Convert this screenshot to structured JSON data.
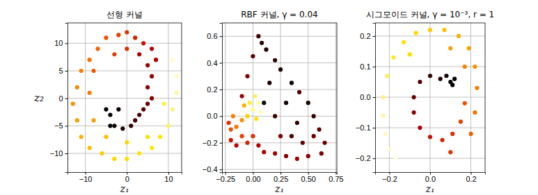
{
  "chart_data": [
    {
      "type": "scatter",
      "title": "선형 커널",
      "x_label": "z₁",
      "y_label": "z₂",
      "xlim": [
        -14.3,
        13.2
      ],
      "ylim": [
        -13.4,
        13.7
      ],
      "xticks": [
        {
          "value": -10,
          "label": "−10"
        },
        0,
        10
      ],
      "yticks": [
        {
          "value": -10,
          "label": "−10"
        },
        {
          "value": -5,
          "label": "−5"
        },
        0,
        5,
        10
      ],
      "grid": true,
      "marker": "circle",
      "x": [
        -4,
        -3,
        -1,
        1,
        -2,
        -5,
        -4,
        2,
        3,
        4,
        5,
        6,
        5,
        6,
        5,
        7,
        6,
        4,
        2,
        0,
        -2,
        -5,
        -7,
        -9,
        -11,
        -12,
        -13,
        -12,
        -11,
        -9,
        -6,
        -3,
        0,
        3,
        6,
        8,
        10,
        11,
        12,
        12,
        11,
        -8,
        -9,
        -8,
        -5,
        0,
        5,
        9,
        3,
        -3,
        0
      ],
      "values": [
        -3,
        -5,
        -5.5,
        -5,
        -2,
        -2,
        -5,
        -4,
        -3,
        -2,
        -1,
        0,
        2,
        4,
        6,
        7,
        9,
        10,
        11,
        12,
        11.5,
        11,
        9,
        7,
        5,
        2,
        -1,
        -4,
        -7,
        -9,
        -10,
        -11,
        -11,
        -10,
        -9,
        -7,
        -5,
        -2,
        1,
        4,
        7,
        5,
        1,
        -4,
        -7,
        -8,
        -7,
        -1,
        8,
        8,
        9
      ],
      "colors": [
        "#000000",
        "#100000",
        "#200000",
        "#300000",
        "#0a0000",
        "#000000",
        "#050000",
        "#400000",
        "#500000",
        "#600000",
        "#700000",
        "#800000",
        "#8a0000",
        "#990000",
        "#a00000",
        "#b00000",
        "#c00000",
        "#cc1000",
        "#d82000",
        "#e03000",
        "#e84000",
        "#f05000",
        "#f56000",
        "#f87000",
        "#fa8000",
        "#fb8800",
        "#fc9000",
        "#fda000",
        "#feb000",
        "#ffbf00",
        "#ffcc00",
        "#ffd800",
        "#ffe000",
        "#ffe400",
        "#ffe600",
        "#ffe800",
        "#fff060",
        "#fff280",
        "#fff5a0",
        "#fff8c0",
        "#fffad0",
        "#f05800",
        "#f87800",
        "#fca000",
        "#ffc000",
        "#ffd800",
        "#ffe000",
        "#fff040",
        "#b80000",
        "#e04000",
        "#d83000"
      ]
    },
    {
      "type": "scatter",
      "title": "RBF 커널, γ = 0.04",
      "x_label": "z₁",
      "xlim": [
        -0.28,
        0.76
      ],
      "ylim": [
        -0.42,
        0.7
      ],
      "xticks": [
        {
          "value": -0.25,
          "label": "−0.25"
        },
        {
          "value": 0,
          "label": "0.00"
        },
        0.25,
        {
          "value": 0.5,
          "label": "0.50"
        },
        0.75
      ],
      "yticks": [
        {
          "value": -0.4,
          "label": "−0.4"
        },
        {
          "value": -0.2,
          "label": "−0.2"
        },
        {
          "value": 0,
          "label": "0.0"
        },
        0.2,
        0.4,
        0.6
      ],
      "grid": true,
      "marker": "circle",
      "x": [
        0,
        0.05,
        -0.03,
        0.03,
        0.07,
        -0.05,
        0.02,
        -0.1,
        -0.15,
        -0.2,
        -0.18,
        -0.08,
        -0.22,
        -0.2,
        -0.15,
        -0.05,
        0,
        0.05,
        -0.1,
        -0.1,
        -0.05,
        0,
        0.05,
        0.08,
        0.12,
        0.2,
        0.25,
        0.35,
        0.42,
        0.5,
        0.55,
        0.6,
        0.65,
        0.62,
        0.5,
        0.4,
        0.3,
        0.2,
        0.1,
        0.3,
        0.2,
        0.4,
        0.45,
        0.25,
        0.15,
        0.1,
        0.35,
        0.55
      ],
      "values": [
        0.05,
        0.1,
        0.1,
        -0.02,
        0.03,
        0,
        0.15,
        -0.03,
        -0.08,
        -0.1,
        0,
        0.08,
        -0.05,
        -0.18,
        -0.22,
        -0.2,
        -0.15,
        -0.22,
        -0.15,
        0.15,
        0.3,
        0.45,
        0.6,
        0.55,
        0.5,
        0.42,
        0.35,
        0.25,
        0.18,
        0.1,
        0,
        -0.1,
        -0.2,
        -0.28,
        -0.3,
        -0.32,
        -0.3,
        -0.28,
        -0.27,
        0.1,
        0,
        -0.05,
        -0.2,
        -0.15,
        0.25,
        0.1,
        -0.15,
        -0.15
      ],
      "colors": [
        "#ffff80",
        "#ffffa0",
        "#ffee40",
        "#ffe020",
        "#ffffc0",
        "#ffd000",
        "#fff060",
        "#ff9000",
        "#ff7000",
        "#f05000",
        "#ff8000",
        "#ffb000",
        "#e03000",
        "#d01000",
        "#c00000",
        "#d82000",
        "#e03000",
        "#b00000",
        "#e84000",
        "#a00000",
        "#800000",
        "#600000",
        "#400000",
        "#300000",
        "#200000",
        "#300000",
        "#200000",
        "#100000",
        "#500000",
        "#200000",
        "#300000",
        "#600000",
        "#700000",
        "#800000",
        "#900000",
        "#a00000",
        "#900000",
        "#a00000",
        "#b00000",
        "#100000",
        "#400000",
        "#300000",
        "#600000",
        "#800000",
        "#200000",
        "#000000",
        "#500000",
        "#700000"
      ]
    },
    {
      "type": "scatter",
      "title": "시그모이드 커널, γ = 10⁻³, r = 1",
      "x_label": "z₁",
      "xlim": [
        -0.27,
        0.27
      ],
      "ylim": [
        -0.245,
        0.243
      ],
      "xticks": [
        {
          "value": -0.2,
          "label": "−0.2"
        },
        {
          "value": 0,
          "label": "0.0"
        },
        0.2
      ],
      "yticks": [
        {
          "value": -0.2,
          "label": "−0.2"
        },
        {
          "value": -0.1,
          "label": "−0.1"
        },
        {
          "value": 0,
          "label": "0.0"
        },
        0.1,
        0.2
      ],
      "grid": true,
      "marker": "circle",
      "x": [
        0.1,
        0.12,
        0.08,
        0.11,
        0.05,
        0,
        -0.05,
        -0.08,
        -0.08,
        -0.05,
        0,
        0.06,
        0.11,
        0.15,
        0.17,
        0.2,
        0.22,
        0.23,
        0.22,
        0.19,
        0.14,
        0.07,
        0,
        -0.07,
        -0.13,
        -0.18,
        -0.21,
        -0.23,
        -0.23,
        -0.22,
        -0.2,
        -0.17,
        0.1,
        0.17,
        0.1,
        -0.1
      ],
      "values": [
        0.05,
        0.06,
        0.07,
        0.04,
        0.06,
        0.07,
        0.05,
        0,
        -0.05,
        -0.1,
        -0.13,
        -0.14,
        -0.12,
        -0.08,
        -0.02,
        -0.12,
        -0.05,
        0.03,
        0.1,
        0.16,
        0.2,
        0.22,
        0.22,
        0.21,
        0.18,
        0.13,
        0.07,
        0,
        -0.06,
        -0.12,
        -0.17,
        -0.2,
        -0.18,
        0.1,
        0.16,
        0.14
      ],
      "colors": [
        "#000000",
        "#000000",
        "#100000",
        "#050000",
        "#200000",
        "#300000",
        "#500000",
        "#700000",
        "#900000",
        "#b00000",
        "#c81000",
        "#d82000",
        "#e03000",
        "#e84000",
        "#f05000",
        "#f56000",
        "#f87000",
        "#fa8000",
        "#fb9000",
        "#fca000",
        "#fdb000",
        "#fec000",
        "#ffcc00",
        "#ffd800",
        "#ffe000",
        "#ffe820",
        "#fff050",
        "#fff080",
        "#fff5a0",
        "#fff8c0",
        "#fffad0",
        "#fffce0",
        "#e03000",
        "#f88000",
        "#fca000",
        "#ffe000"
      ]
    }
  ]
}
